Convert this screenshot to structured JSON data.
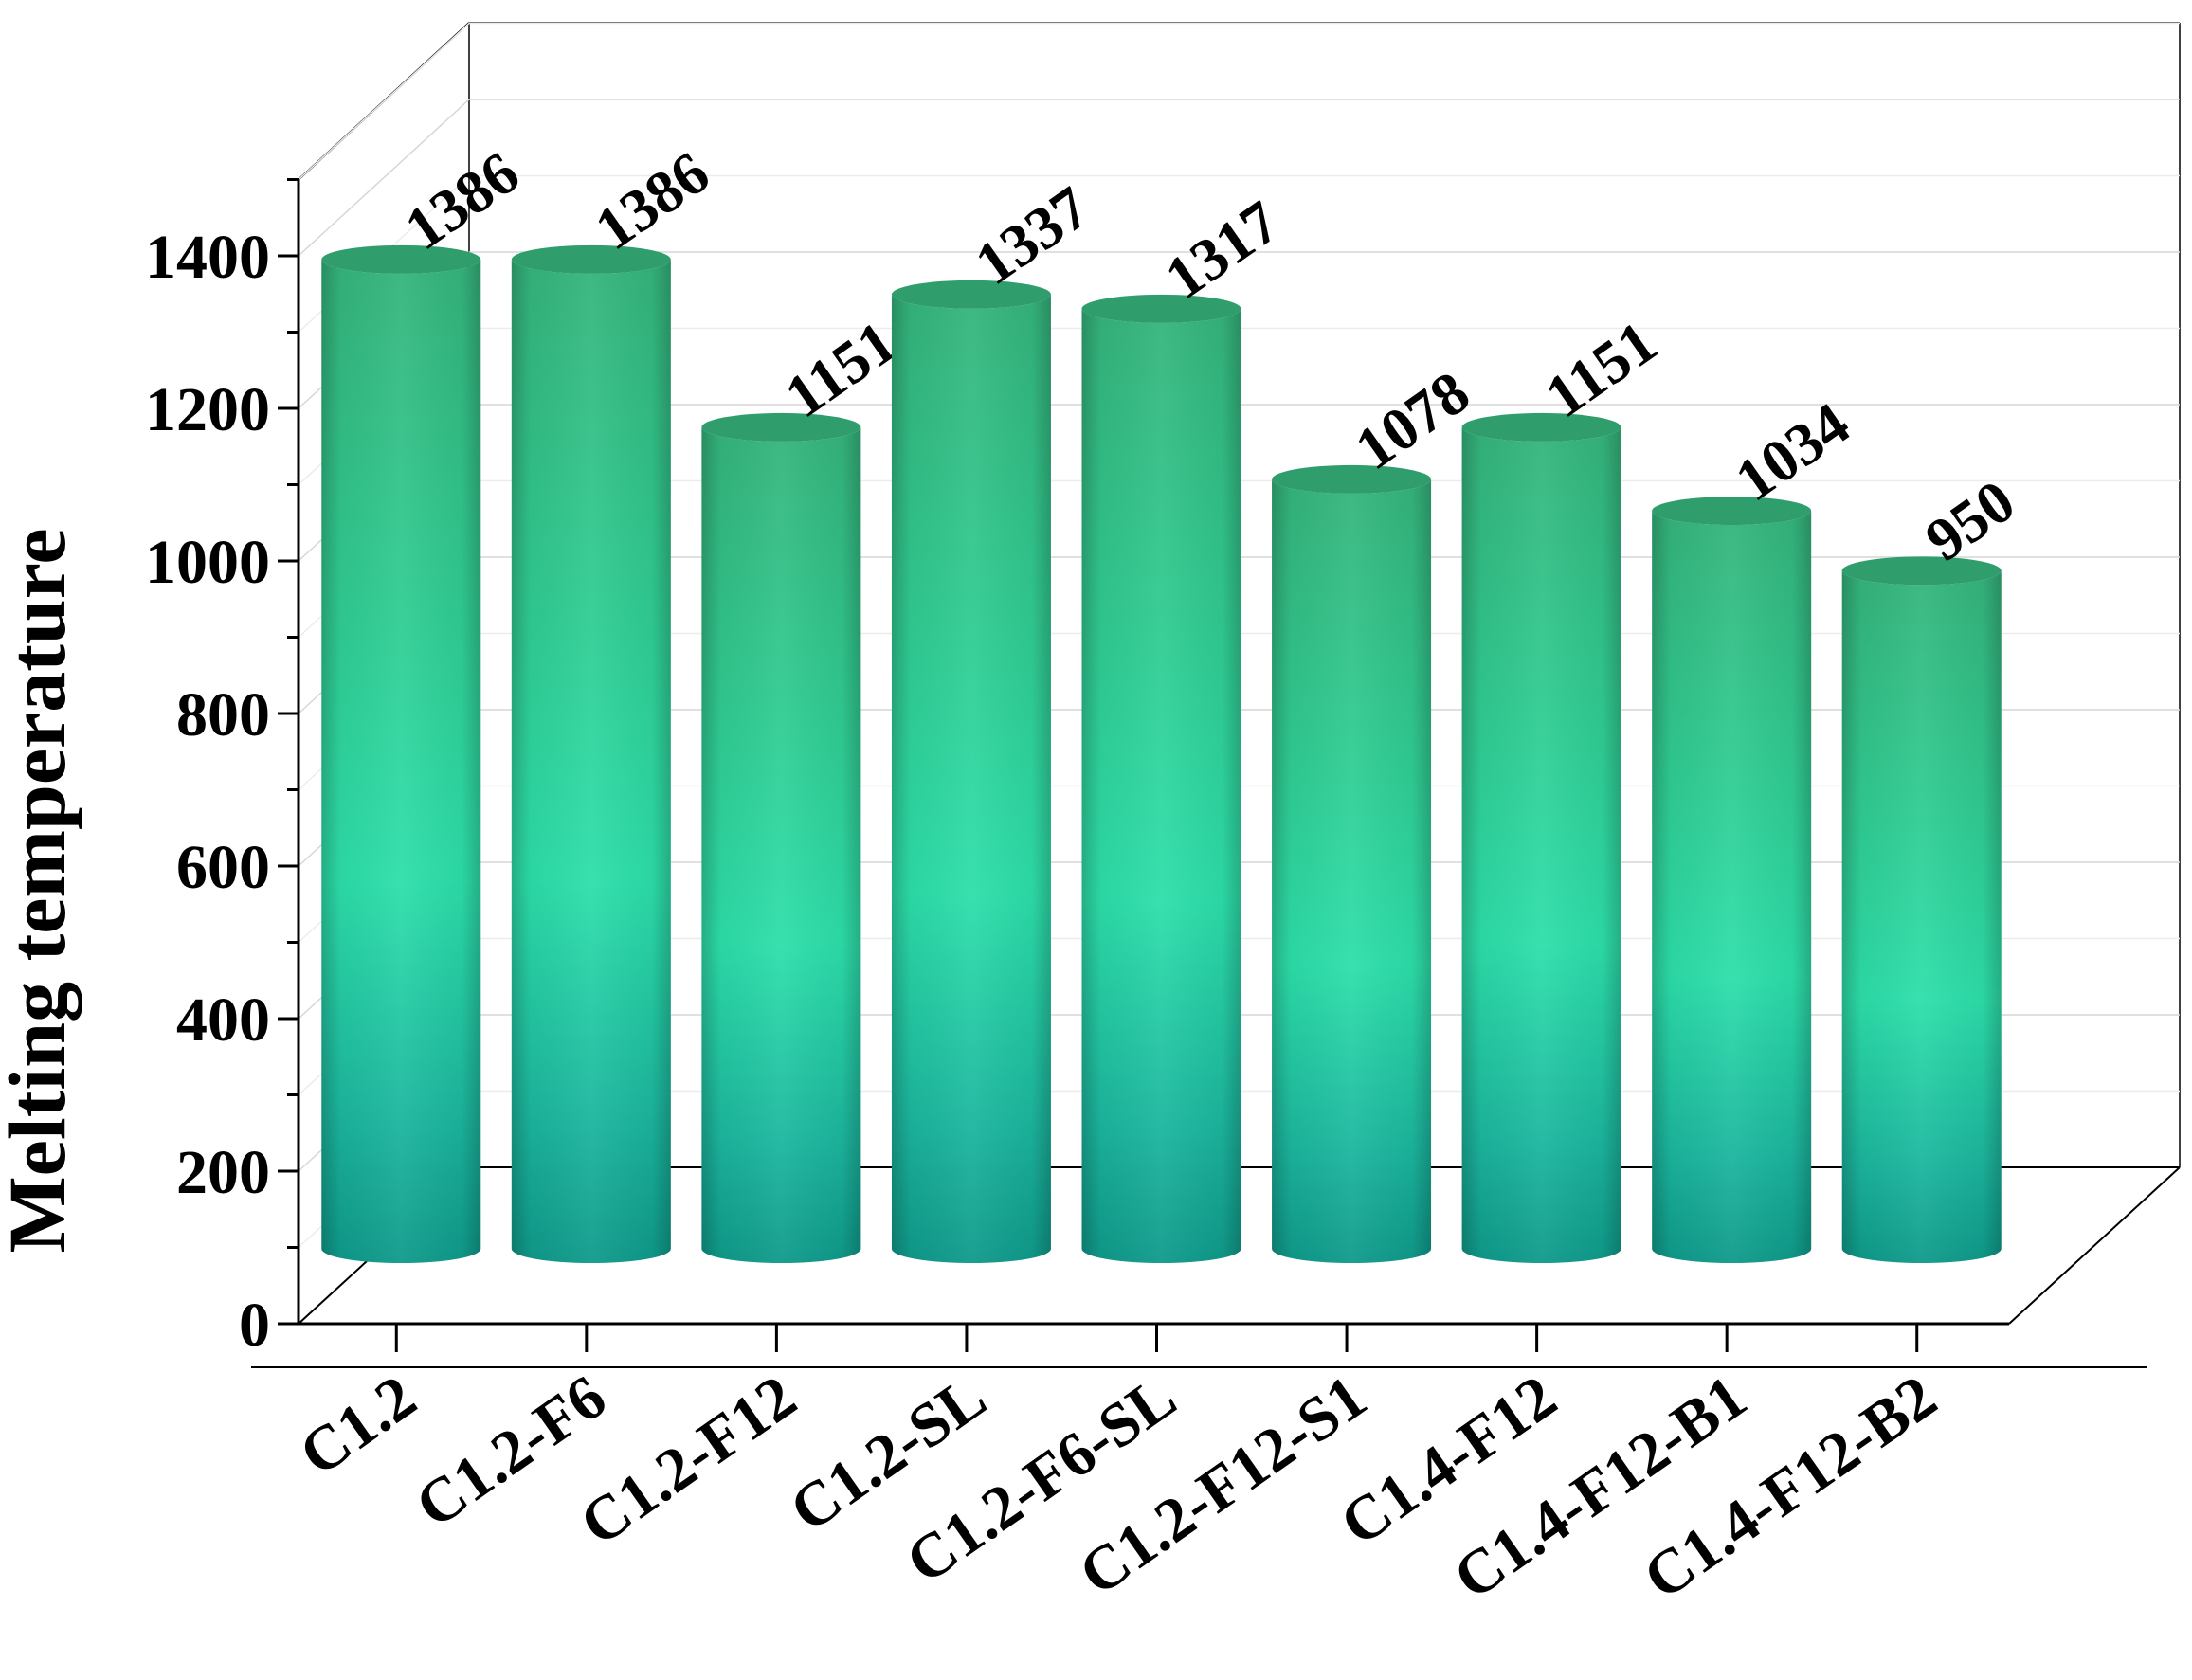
{
  "chart_data": {
    "type": "bar",
    "style": "3d-cylinder",
    "title": "",
    "xlabel": "",
    "ylabel": "Melting temperature",
    "categories": [
      "C1.2",
      "C1.2-F6",
      "C1.2-F12",
      "C1.2-SL",
      "C1.2-F6-SL",
      "C1.2-F12-S1",
      "C1.4-F12",
      "C1.4-F12-B1",
      "C1.4-F12-B2"
    ],
    "values": [
      1386,
      1386,
      1151,
      1337,
      1317,
      1078,
      1151,
      1034,
      950
    ],
    "data_labels": [
      "1386",
      "1386",
      "1151",
      "1337",
      "1317",
      "1078",
      "1151",
      "1034",
      "950"
    ],
    "ylim": [
      0,
      1500
    ],
    "yticks": [
      "0",
      "200",
      "400",
      "600",
      "800",
      "1000",
      "1200",
      "1400"
    ],
    "grid": true,
    "legend": "none",
    "colors": {
      "bar_top": "#2a9a78",
      "bar_mid": "#2de0a8",
      "bar_bottom": "#12a08c",
      "grid": "#d8d8d8",
      "axis": "#000000"
    }
  }
}
